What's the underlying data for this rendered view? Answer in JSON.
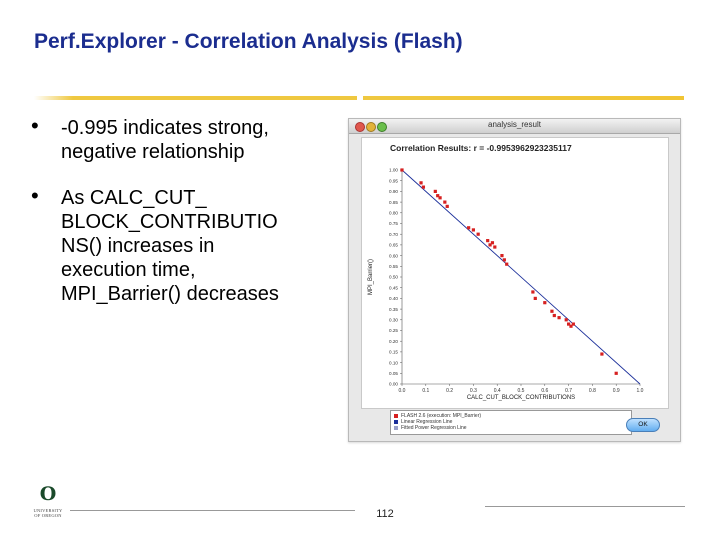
{
  "slide": {
    "title": "Perf.Explorer - Correlation Analysis (Flash)",
    "page_number": "112",
    "bullets": [
      {
        "text": "-0.995 indicates strong,\nnegative relationship"
      },
      {
        "text": "As CALC_CUT_\nBLOCK_CONTRIBUTIO\nNS() increases in\nexecution time,\nMPI_Barrier() decreases"
      }
    ],
    "logo": {
      "letter": "O",
      "text": "UNIVERSITY\nOF OREGON"
    }
  },
  "window": {
    "title": "analysis_result",
    "ok_label": "OK",
    "plot_title": "Correlation Results: r = -0.9953962923235117",
    "legend": [
      {
        "label": "FLASH 2.6 (execution: MPI_Barrier)",
        "color": "#d62020"
      },
      {
        "label": "Linear Regression Line",
        "color": "#1b2f9a"
      },
      {
        "label": "Fitted Power Regression Line",
        "color": "#9aa0c8"
      }
    ]
  },
  "chart_data": {
    "type": "scatter",
    "title": "Correlation Results: r = -0.9953962923235117",
    "xlabel": "CALC_CUT_BLOCK_CONTRIBUTIONS",
    "ylabel": "MPI_Barrier()",
    "xlim": [
      0.0,
      1.0
    ],
    "ylim": [
      0.0,
      1.0
    ],
    "x_ticks": [
      "0.0",
      "0.1",
      "0.2",
      "0.3",
      "0.4",
      "0.5",
      "0.6",
      "0.7",
      "0.8",
      "0.9",
      "1.0"
    ],
    "y_ticks": [
      "0.00",
      "0.05",
      "0.10",
      "0.15",
      "0.20",
      "0.25",
      "0.30",
      "0.35",
      "0.40",
      "0.45",
      "0.50",
      "0.55",
      "0.60",
      "0.65",
      "0.70",
      "0.75",
      "0.80",
      "0.85",
      "0.90",
      "0.95",
      "1.00"
    ],
    "series": [
      {
        "name": "FLASH 2.6 (execution: MPI_Barrier)",
        "color": "#d62020",
        "x": [
          0.0,
          0.08,
          0.09,
          0.14,
          0.15,
          0.16,
          0.18,
          0.19,
          0.28,
          0.3,
          0.32,
          0.36,
          0.37,
          0.38,
          0.39,
          0.42,
          0.43,
          0.44,
          0.55,
          0.56,
          0.6,
          0.63,
          0.64,
          0.66,
          0.69,
          0.7,
          0.71,
          0.72,
          0.84,
          0.9
        ],
        "y": [
          1.0,
          0.94,
          0.92,
          0.9,
          0.88,
          0.87,
          0.85,
          0.83,
          0.73,
          0.72,
          0.7,
          0.67,
          0.65,
          0.66,
          0.64,
          0.6,
          0.58,
          0.56,
          0.43,
          0.4,
          0.38,
          0.34,
          0.32,
          0.31,
          0.3,
          0.28,
          0.27,
          0.28,
          0.14,
          0.05
        ]
      },
      {
        "name": "Linear Regression Line",
        "color": "#1b2f9a",
        "x": [
          0.0,
          1.0
        ],
        "y": [
          1.0,
          0.0
        ]
      }
    ],
    "grid": false,
    "legend_position": "bottom"
  }
}
